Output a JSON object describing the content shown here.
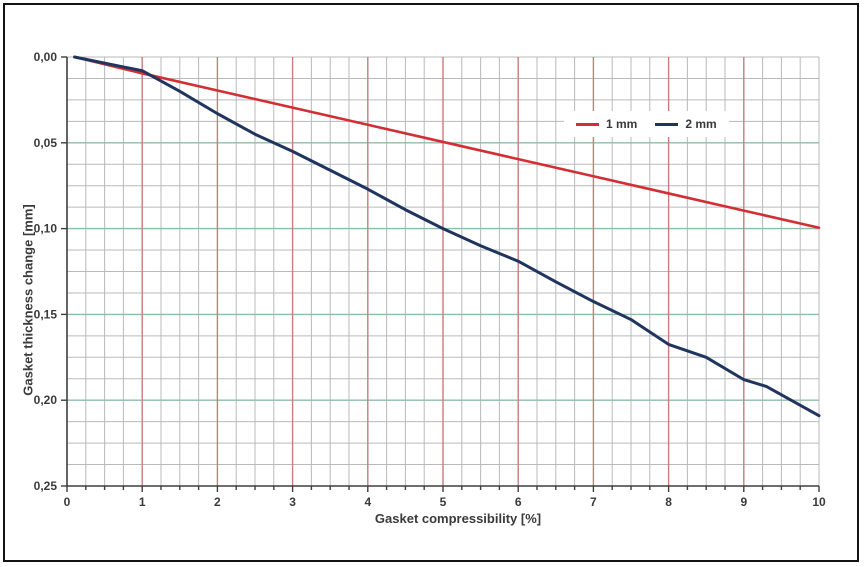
{
  "window": {
    "background": "#ffffff",
    "frame_border_color": "#141414"
  },
  "chart_data": {
    "type": "line",
    "title": "",
    "xlabel": "Gasket compressibility  [%]",
    "ylabel": "Gasket thickness change  [mm]",
    "xlim": [
      0,
      10
    ],
    "ylim": [
      0,
      0.25
    ],
    "y_axis_inverted": true,
    "text_color": "#3a3a3a",
    "grid": {
      "minor_x_step": 0.25,
      "minor_y_step": 0.0125,
      "major_x_step": 1,
      "major_y_step": 0.05,
      "minor_color": "#b7babd",
      "major_x_color": "#c97c7c",
      "major_y_color": "#8fbca8",
      "axis_color": "#3f3f3f"
    },
    "x_ticks": {
      "values": [
        0,
        1,
        2,
        3,
        4,
        5,
        6,
        7,
        8,
        9,
        10
      ],
      "labels": [
        "0",
        "1",
        "2",
        "3",
        "4",
        "5",
        "6",
        "7",
        "8",
        "9",
        "10"
      ]
    },
    "y_ticks": {
      "values": [
        0,
        0.05,
        0.1,
        0.15,
        0.2,
        0.25
      ],
      "labels": [
        "0,00",
        "0,05",
        "0,10",
        "0,15",
        "0,20",
        "0,25"
      ]
    },
    "legend": {
      "position": "inside-top-right",
      "background": "#ffffff",
      "entries": [
        "1 mm",
        "2 mm"
      ]
    },
    "series": [
      {
        "name": "1 mm",
        "color": "#d22f35",
        "width": 2.6,
        "x": [
          0.1,
          1,
          2,
          3,
          4,
          5,
          6,
          7,
          8,
          9,
          10
        ],
        "y": [
          0.0,
          0.0095,
          0.0195,
          0.0295,
          0.0395,
          0.0495,
          0.0595,
          0.0695,
          0.0795,
          0.0895,
          0.0995
        ]
      },
      {
        "name": "2 mm",
        "color": "#20355e",
        "width": 3,
        "x": [
          0.1,
          1,
          1.5,
          2,
          2.5,
          3,
          3.5,
          4,
          4.5,
          5,
          5.5,
          6,
          6.5,
          7,
          7.5,
          8,
          8.5,
          9,
          9.3,
          10
        ],
        "y": [
          0.0,
          0.008,
          0.02,
          0.033,
          0.045,
          0.055,
          0.066,
          0.077,
          0.089,
          0.1,
          0.11,
          0.119,
          0.131,
          0.1425,
          0.153,
          0.1675,
          0.175,
          0.188,
          0.192,
          0.209
        ]
      }
    ]
  }
}
